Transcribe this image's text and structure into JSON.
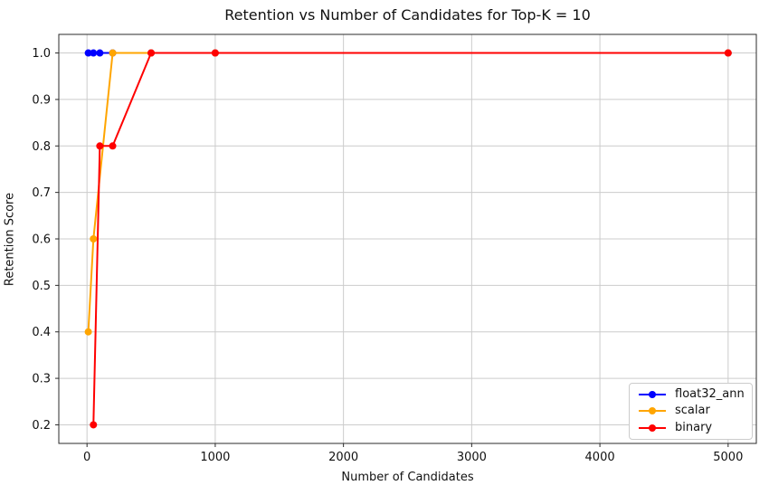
{
  "chart_data": {
    "type": "line",
    "title": "Retention vs Number of Candidates for Top-K = 10",
    "xlabel": "Number of Candidates",
    "ylabel": "Retention Score",
    "xlim": [
      -220,
      5220
    ],
    "ylim": [
      0.16,
      1.04
    ],
    "xticks": [
      0,
      1000,
      2000,
      3000,
      4000,
      5000
    ],
    "yticks": [
      0.2,
      0.3,
      0.4,
      0.5,
      0.6,
      0.7,
      0.8,
      0.9,
      1.0
    ],
    "grid": true,
    "grid_color": "#cccccc",
    "spine_color": "#2b2b2b",
    "marker": "o",
    "line_width": 2,
    "legend": {
      "position": "lower right",
      "entries": [
        "float32_ann",
        "scalar",
        "binary"
      ]
    },
    "series": [
      {
        "name": "float32_ann",
        "color": "#0000ff",
        "x": [
          10,
          50,
          100,
          200,
          500,
          1000,
          5000
        ],
        "y": [
          1.0,
          1.0,
          1.0,
          1.0,
          1.0,
          1.0,
          1.0
        ]
      },
      {
        "name": "scalar",
        "color": "#ffa500",
        "x": [
          10,
          50,
          200,
          500,
          1000,
          5000
        ],
        "y": [
          0.4,
          0.6,
          1.0,
          1.0,
          1.0,
          1.0
        ]
      },
      {
        "name": "binary",
        "color": "#ff0000",
        "x": [
          50,
          100,
          200,
          500,
          1000,
          5000
        ],
        "y": [
          0.2,
          0.8,
          0.8,
          1.0,
          1.0,
          1.0
        ]
      }
    ]
  }
}
